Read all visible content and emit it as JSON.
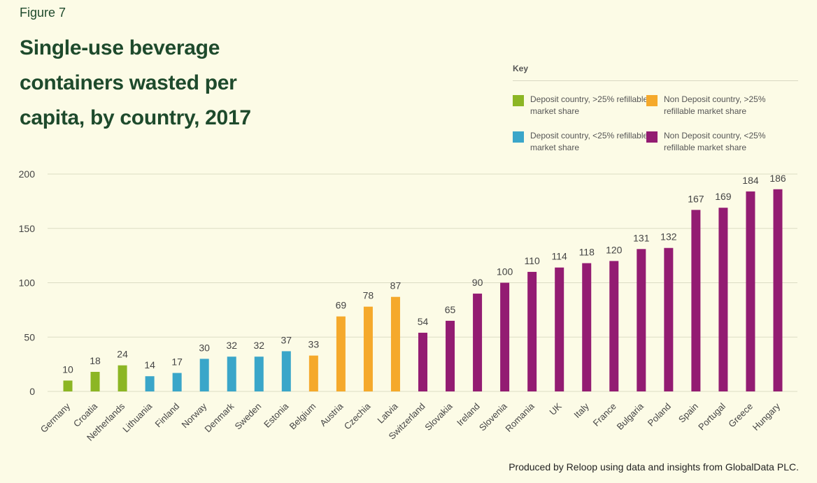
{
  "figure_label": "Figure 7",
  "title_lines": [
    "Single-use beverage",
    "containers wasted per",
    "capita, by country, 2017"
  ],
  "key": {
    "title": "Key",
    "items": [
      {
        "label": "Deposit country, >25% refillable market share",
        "color": "#8cb624"
      },
      {
        "label": "Non Deposit country, >25% refillable market share",
        "color": "#f5a92b"
      },
      {
        "label": "Deposit country, <25% refillable market share",
        "color": "#3aa6c9"
      },
      {
        "label": "Non Deposit country, <25% refillable market share",
        "color": "#931c72"
      }
    ]
  },
  "footer": "Produced by Reloop using data and insights from GlobalData PLC.",
  "chart_data": {
    "type": "bar",
    "title": "Single-use beverage containers wasted per capita, by country, 2017",
    "xlabel": "",
    "ylabel": "",
    "ylim": [
      0,
      200
    ],
    "yticks": [
      0,
      50,
      100,
      150,
      200
    ],
    "grid": true,
    "legend_position": "top-right",
    "categories": [
      "Germany",
      "Croatia",
      "Netherlands",
      "Lithuania",
      "Finland",
      "Norway",
      "Denmark",
      "Sweden",
      "Estonia",
      "Belgium",
      "Austria",
      "Czechia",
      "Latvia",
      "Switzerland",
      "Slovakia",
      "Ireland",
      "Slovenia",
      "Romania",
      "UK",
      "Italy",
      "France",
      "Bulgaria",
      "Poland",
      "Spain",
      "Portugal",
      "Greece",
      "Hungary"
    ],
    "values": [
      10,
      18,
      24,
      14,
      17,
      30,
      32,
      32,
      37,
      33,
      69,
      78,
      87,
      54,
      65,
      90,
      100,
      110,
      114,
      118,
      120,
      131,
      132,
      167,
      169,
      184,
      186
    ],
    "group": [
      0,
      0,
      0,
      2,
      2,
      2,
      2,
      2,
      2,
      1,
      1,
      1,
      1,
      3,
      3,
      3,
      3,
      3,
      3,
      3,
      3,
      3,
      3,
      3,
      3,
      3,
      3
    ],
    "group_names": [
      "Deposit country, >25% refillable market share",
      "Non Deposit country, >25% refillable market share",
      "Deposit country, <25% refillable market share",
      "Non Deposit country, <25% refillable market share"
    ]
  }
}
